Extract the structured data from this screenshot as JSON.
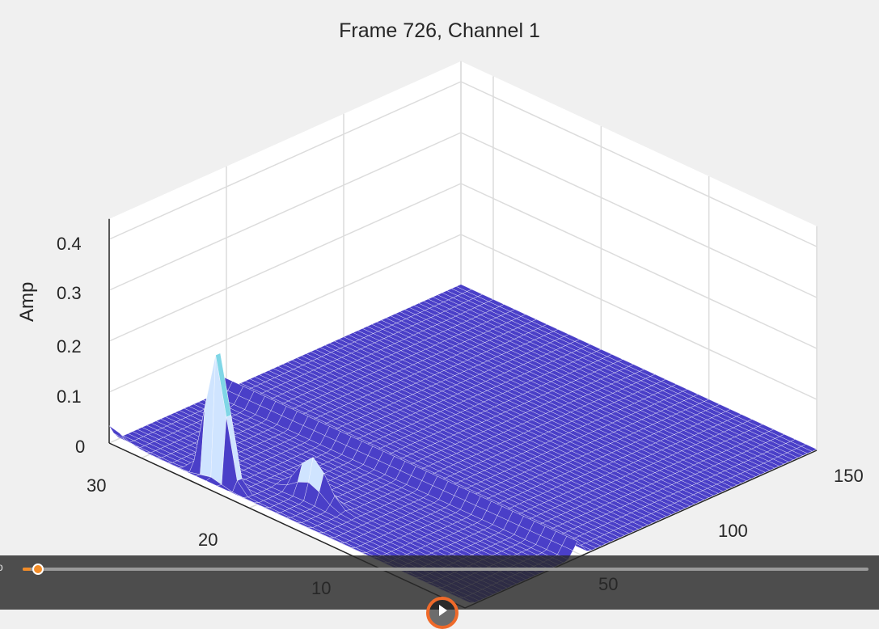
{
  "chart_data": {
    "type": "surface",
    "title": "Frame 726, Channel 1",
    "zlabel": "Amp",
    "xlabel": "",
    "ylabel": "",
    "z_ticks": [
      "0",
      "0.1",
      "0.2",
      "0.3",
      "0.4"
    ],
    "y_ticks": [
      "10",
      "20",
      "30"
    ],
    "x_ticks": [
      "50",
      "100",
      "150"
    ],
    "x_range": [
      0,
      150
    ],
    "y_range": [
      0,
      33
    ],
    "z_range": [
      0,
      0.44
    ],
    "grid": true,
    "peaks": [
      {
        "x": 5,
        "y": 24,
        "amp": 0.37
      },
      {
        "x": 18,
        "y": 18,
        "amp": 0.08
      },
      {
        "x": 0,
        "y": 33,
        "amp": 0.02
      },
      {
        "ridge_x": 48,
        "amp": 0.03
      }
    ],
    "surface_color": "#4a3fc8"
  },
  "player": {
    "edge_text": "o",
    "progress": 0.01
  }
}
